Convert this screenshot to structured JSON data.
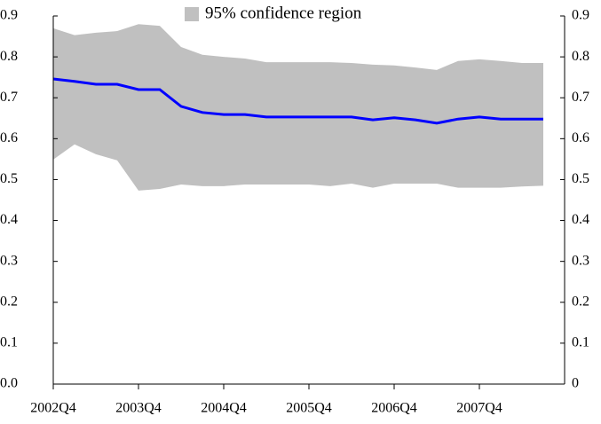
{
  "chart_data": {
    "type": "line",
    "categories": [
      "2002Q4",
      null,
      null,
      null,
      "2003Q4",
      null,
      null,
      null,
      "2004Q4",
      null,
      null,
      null,
      "2005Q4",
      null,
      null,
      null,
      "2006Q4",
      null,
      null,
      null,
      "2007Q4",
      null,
      null,
      null
    ],
    "series": [
      {
        "name": "95% confidence region",
        "type": "band",
        "color": "#c0c0c0",
        "upper": [
          0.87,
          0.853,
          0.859,
          0.863,
          0.88,
          0.876,
          0.824,
          0.805,
          0.8,
          0.796,
          0.787,
          0.787,
          0.787,
          0.787,
          0.785,
          0.781,
          0.779,
          0.774,
          0.768,
          0.79,
          0.794,
          0.79,
          0.785,
          0.785
        ],
        "lower": [
          0.549,
          0.586,
          0.562,
          0.547,
          0.473,
          0.477,
          0.488,
          0.484,
          0.484,
          0.488,
          0.488,
          0.488,
          0.488,
          0.484,
          0.49,
          0.48,
          0.49,
          0.49,
          0.49,
          0.48,
          0.48,
          0.48,
          0.483,
          0.485
        ]
      },
      {
        "type": "line",
        "color": "#0000ff",
        "values": [
          0.746,
          0.74,
          0.733,
          0.733,
          0.72,
          0.72,
          0.679,
          0.664,
          0.659,
          0.659,
          0.653,
          0.653,
          0.653,
          0.653,
          0.653,
          0.646,
          0.651,
          0.646,
          0.638,
          0.648,
          0.653,
          0.648,
          0.648,
          0.648
        ]
      }
    ],
    "ylim": [
      0,
      0.9
    ],
    "yticks": [
      {
        "value": 0,
        "label": "0.0"
      },
      0.1,
      0.2,
      0.3,
      0.4,
      0.5,
      0.6,
      0.7,
      0.8,
      0.9
    ],
    "y2lim": [
      0,
      0.9
    ],
    "y2ticks": [
      0,
      0.1,
      0.2,
      0.3,
      0.4,
      0.5,
      0.6,
      0.7,
      0.8,
      0.9
    ],
    "legend": "top"
  }
}
